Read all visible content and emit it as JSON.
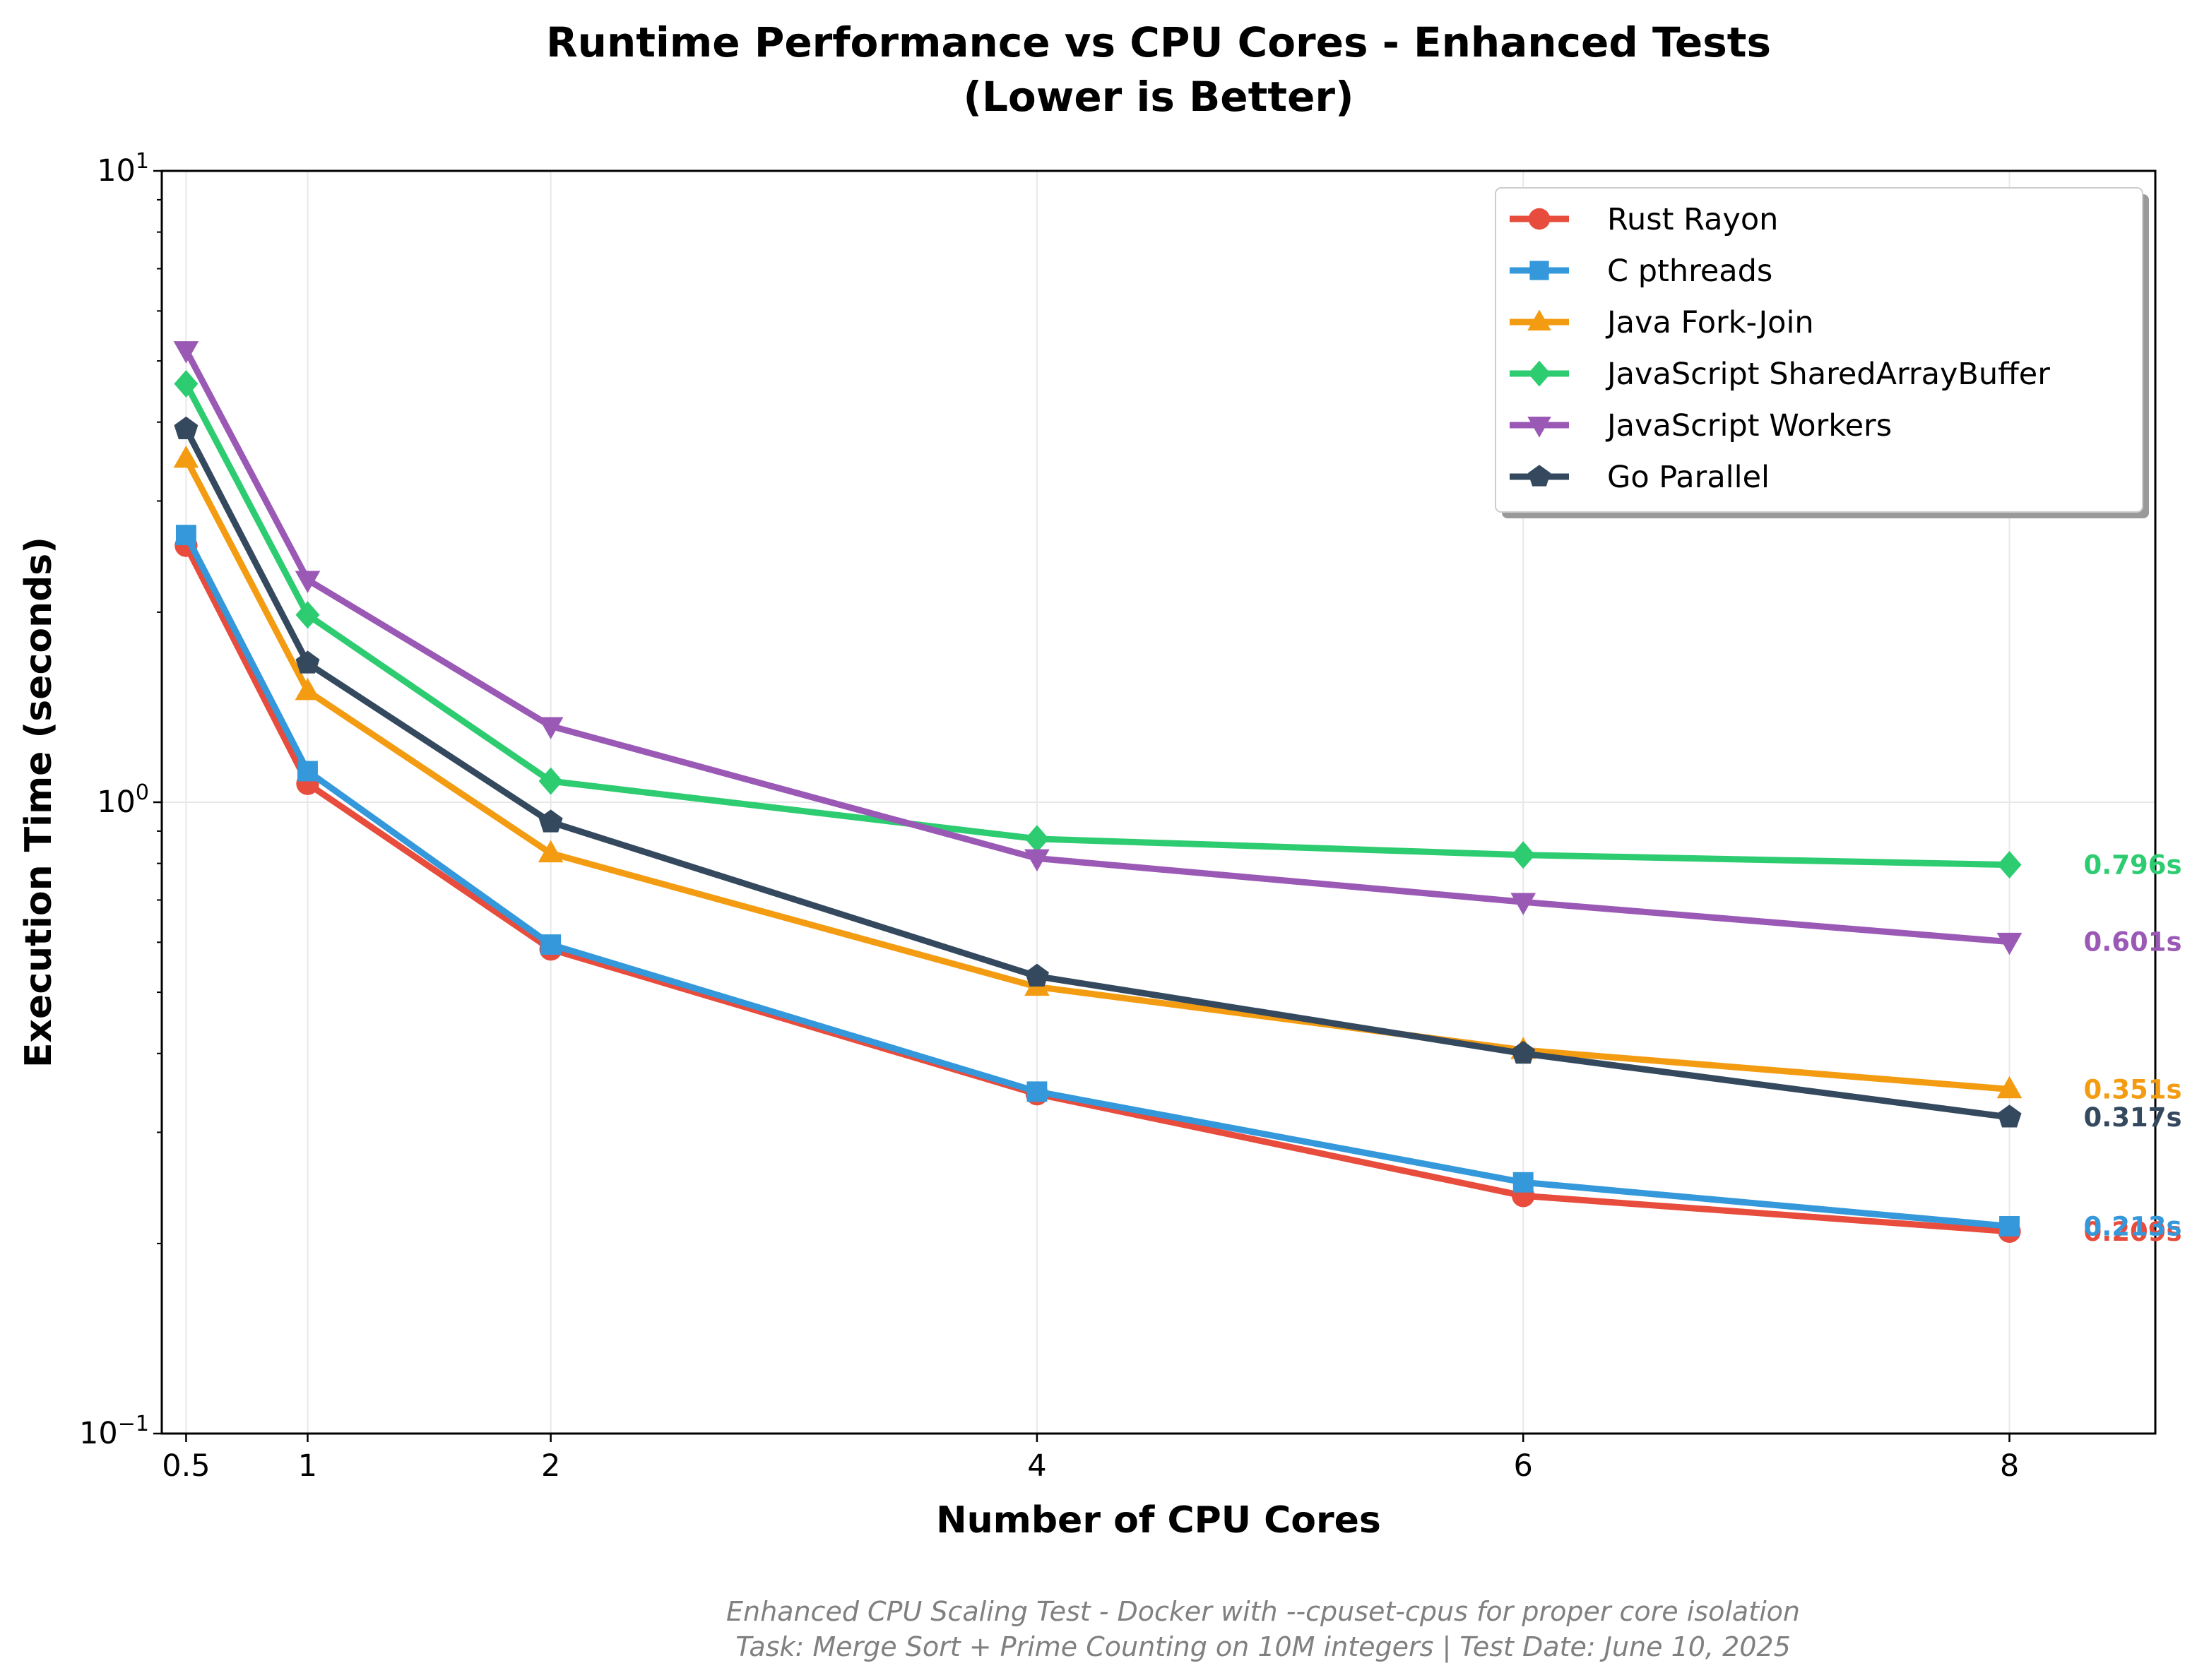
{
  "chart_data": {
    "type": "line",
    "title_lines": [
      "Runtime Performance vs CPU Cores - Enhanced Tests",
      "(Lower is Better)"
    ],
    "xlabel": "Number of CPU Cores",
    "ylabel": "Execution Time (seconds)",
    "x": [
      0.5,
      1,
      2,
      4,
      6,
      8
    ],
    "x_tick_labels": [
      "0.5",
      "1",
      "2",
      "4",
      "6",
      "8"
    ],
    "xlim": [
      0.4,
      8.6
    ],
    "yscale": "log",
    "ylim": [
      0.1,
      10
    ],
    "y_ticks": [
      {
        "base": "10",
        "exp": "−1",
        "value": 0.1
      },
      {
        "base": "10",
        "exp": "0",
        "value": 1
      },
      {
        "base": "10",
        "exp": "1",
        "value": 10
      }
    ],
    "grid": true,
    "legend_position": "top-right",
    "series": [
      {
        "name": "Rust Rayon",
        "color": "#e74c3c",
        "marker": "circle",
        "values": [
          2.55,
          1.07,
          0.585,
          0.345,
          0.238,
          0.209
        ],
        "end_label": "0.209s"
      },
      {
        "name": "C pthreads",
        "color": "#3498db",
        "marker": "square",
        "values": [
          2.65,
          1.12,
          0.595,
          0.348,
          0.25,
          0.213
        ],
        "end_label": "0.213s"
      },
      {
        "name": "Java Fork-Join",
        "color": "#f39c12",
        "marker": "triangle-up",
        "values": [
          3.5,
          1.5,
          0.83,
          0.51,
          0.405,
          0.351
        ],
        "end_label": "0.351s"
      },
      {
        "name": "JavaScript SharedArrayBuffer",
        "color": "#2ecc71",
        "marker": "diamond",
        "values": [
          4.6,
          1.98,
          1.08,
          0.875,
          0.825,
          0.796
        ],
        "end_label": "0.796s"
      },
      {
        "name": "JavaScript Workers",
        "color": "#9b59b6",
        "marker": "triangle-down",
        "values": [
          5.2,
          2.25,
          1.32,
          0.815,
          0.695,
          0.601
        ],
        "end_label": "0.601s"
      },
      {
        "name": "Go Parallel",
        "color": "#34495e",
        "marker": "pentagon",
        "values": [
          3.9,
          1.66,
          0.93,
          0.53,
          0.4,
          0.317
        ],
        "end_label": "0.317s"
      }
    ],
    "footnote_lines": [
      "Enhanced CPU Scaling Test - Docker with --cpuset-cpus for proper core isolation",
      "Task: Merge Sort + Prime Counting on 10M integers | Test Date: June 10, 2025"
    ]
  }
}
